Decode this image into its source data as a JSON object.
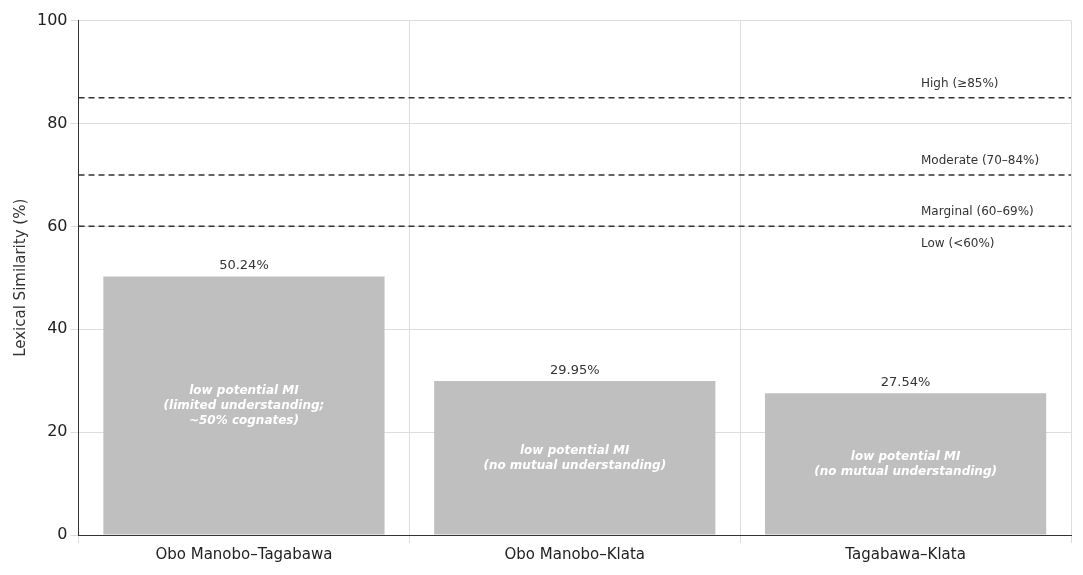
{
  "chart_data": {
    "type": "bar",
    "ylabel": "Lexical Similarity (%)",
    "categories": [
      "Obo Manobo–Tagabawa",
      "Obo Manobo–Klata",
      "Tagabawa–Klata"
    ],
    "values": [
      50.24,
      29.95,
      27.54
    ],
    "color": "#bfbfbf",
    "value_labels": [
      "50.24%",
      "29.95%",
      "27.54%"
    ],
    "ylim": [
      0,
      100
    ],
    "yticks": [
      0,
      20,
      40,
      60,
      80,
      100
    ],
    "grid": true,
    "ref_lines": [
      {
        "axis": "y",
        "value": 85,
        "label": "High (≥85%)",
        "color": "#333333",
        "line_style": "dashed"
      },
      {
        "axis": "y",
        "value": 70,
        "label": "Moderate (70–84%)",
        "color": "#333333",
        "line_style": "dashed"
      },
      {
        "axis": "y",
        "value": 60,
        "label": "Marginal (60–69%)",
        "color": "#333333",
        "line_style": "dashed"
      }
    ],
    "annotations": [
      "low potential MI\n(limited understanding;\n~50% cognates)",
      "low potential MI\n(no mutual understanding)",
      "low potential MI\n(no mutual understanding)",
      "Low (<60%)"
    ]
  }
}
